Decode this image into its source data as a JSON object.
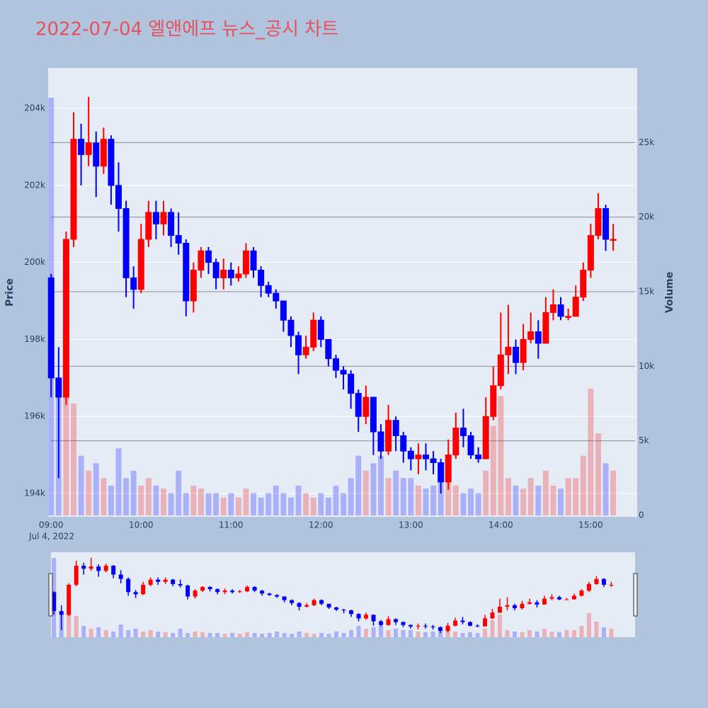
{
  "chart_data": {
    "type": "candlestick",
    "title": "2022-07-04 엘앤에프 뉴스_공시 차트",
    "y_label": "Price",
    "y2_label": "Volume",
    "x_date_label": "Jul 4, 2022",
    "increasing_color": "#ff0000",
    "decreasing_color": "#0000ff",
    "x": [
      "09:00",
      "09:05",
      "09:10",
      "09:15",
      "09:20",
      "09:25",
      "09:30",
      "09:35",
      "09:40",
      "09:45",
      "09:50",
      "09:55",
      "10:00",
      "10:05",
      "10:10",
      "10:15",
      "10:20",
      "10:25",
      "10:30",
      "10:35",
      "10:40",
      "10:45",
      "10:50",
      "10:55",
      "11:00",
      "11:05",
      "11:10",
      "11:15",
      "11:20",
      "11:25",
      "11:30",
      "11:35",
      "11:40",
      "11:45",
      "11:50",
      "11:55",
      "12:00",
      "12:05",
      "12:10",
      "12:15",
      "12:20",
      "12:25",
      "12:30",
      "12:35",
      "12:40",
      "12:45",
      "12:50",
      "12:55",
      "13:00",
      "13:05",
      "13:10",
      "13:15",
      "13:20",
      "13:25",
      "13:30",
      "13:35",
      "13:40",
      "13:45",
      "13:50",
      "13:55",
      "14:00",
      "14:05",
      "14:10",
      "14:15",
      "14:20",
      "14:25",
      "14:30",
      "14:35",
      "14:40",
      "14:45",
      "14:50",
      "14:55",
      "15:00",
      "15:05",
      "15:10",
      "15:15"
    ],
    "open": [
      199600,
      197000,
      196500,
      200600,
      203200,
      202800,
      203100,
      202500,
      203200,
      202000,
      201400,
      199600,
      199300,
      200600,
      201300,
      201000,
      201300,
      200700,
      200500,
      199000,
      199800,
      200300,
      200000,
      199600,
      199800,
      199600,
      199700,
      200300,
      199800,
      199400,
      199200,
      199000,
      198500,
      198100,
      197600,
      197800,
      198500,
      198000,
      197500,
      197200,
      197100,
      196600,
      196000,
      196500,
      195600,
      195100,
      195900,
      195500,
      195100,
      194900,
      195000,
      194900,
      194800,
      194300,
      195000,
      195700,
      195500,
      195000,
      194900,
      196000,
      196800,
      197600,
      197800,
      197400,
      198000,
      198200,
      197900,
      198700,
      198900,
      198600,
      198600,
      199100,
      199800,
      200700,
      201400,
      200600
    ],
    "high": [
      199700,
      197800,
      200800,
      203900,
      203600,
      204300,
      203400,
      203500,
      203300,
      202600,
      201600,
      199900,
      201000,
      201600,
      201600,
      201600,
      201400,
      201300,
      200600,
      200000,
      200400,
      200400,
      200100,
      200100,
      200000,
      199900,
      200500,
      200400,
      199900,
      199500,
      199300,
      199000,
      198600,
      198200,
      198100,
      198700,
      198600,
      198000,
      197600,
      197300,
      197200,
      196700,
      196800,
      196500,
      195800,
      196300,
      196000,
      195600,
      195200,
      195300,
      195300,
      195100,
      194900,
      195400,
      196100,
      196200,
      195600,
      195200,
      196500,
      197300,
      198700,
      198900,
      198000,
      198400,
      198700,
      198500,
      199100,
      199300,
      199100,
      198800,
      199400,
      200000,
      201000,
      201800,
      201500,
      201000
    ],
    "low": [
      196500,
      194400,
      196300,
      200400,
      202000,
      202500,
      201700,
      202300,
      201500,
      200800,
      199100,
      198800,
      199200,
      200400,
      200600,
      200700,
      200400,
      200200,
      198600,
      198700,
      199600,
      199700,
      199300,
      199300,
      199400,
      199500,
      199600,
      199600,
      199100,
      199100,
      198800,
      198200,
      197800,
      197100,
      197500,
      197700,
      197800,
      197300,
      197000,
      196700,
      196200,
      195600,
      195800,
      195000,
      194900,
      195000,
      195100,
      194800,
      194600,
      194500,
      194600,
      194500,
      194000,
      194100,
      194900,
      195200,
      194900,
      194800,
      194900,
      195900,
      196700,
      197100,
      197100,
      197200,
      197900,
      197500,
      197900,
      198500,
      198500,
      198500,
      198600,
      199000,
      199600,
      200600,
      200300,
      200300
    ],
    "close": [
      197000,
      196500,
      200600,
      203200,
      202800,
      203100,
      202500,
      203200,
      202000,
      201400,
      199600,
      199300,
      200600,
      201300,
      201000,
      201300,
      200700,
      200500,
      199000,
      199800,
      200300,
      200000,
      199600,
      199800,
      199600,
      199700,
      200300,
      199800,
      199400,
      199200,
      199000,
      198500,
      198100,
      197600,
      197800,
      198500,
      198000,
      197500,
      197200,
      197100,
      196600,
      196000,
      196500,
      195600,
      195100,
      195900,
      195500,
      195100,
      194900,
      195000,
      194900,
      194800,
      194300,
      195000,
      195700,
      195500,
      195000,
      194900,
      196000,
      196800,
      197600,
      197800,
      197400,
      198000,
      198200,
      197900,
      198700,
      198900,
      198600,
      198600,
      199100,
      199800,
      200700,
      201400,
      200600,
      200600
    ],
    "volume": [
      28000,
      9000,
      14500,
      7500,
      4000,
      3000,
      3500,
      2500,
      2000,
      4500,
      2500,
      3000,
      2000,
      2500,
      2000,
      1800,
      1500,
      3000,
      1500,
      2000,
      1800,
      1500,
      1500,
      1200,
      1500,
      1200,
      1800,
      1500,
      1200,
      1500,
      2000,
      1500,
      1200,
      2000,
      1500,
      1200,
      1500,
      1200,
      2000,
      1500,
      2500,
      4000,
      3000,
      3500,
      4000,
      2500,
      3000,
      2500,
      2500,
      2000,
      1800,
      2000,
      3000,
      2500,
      2000,
      1500,
      1800,
      1500,
      3000,
      6000,
      8000,
      2500,
      2000,
      1800,
      2500,
      2000,
      3000,
      2000,
      1800,
      2500,
      2500,
      4000,
      8500,
      5500,
      3500,
      3000
    ],
    "xlim": [
      "08:58",
      "15:31"
    ],
    "xticks": [
      "09:00",
      "10:00",
      "11:00",
      "12:00",
      "13:00",
      "14:00",
      "15:00"
    ],
    "ylim": [
      193430,
      205050
    ],
    "yticks": [
      {
        "value": 194000,
        "label": "194k"
      },
      {
        "value": 196000,
        "label": "196k"
      },
      {
        "value": 198000,
        "label": "198k"
      },
      {
        "value": 200000,
        "label": "200k"
      },
      {
        "value": 202000,
        "label": "202k"
      },
      {
        "value": 204000,
        "label": "204k"
      }
    ],
    "y2lim": [
      0,
      30000
    ],
    "y2ticks": [
      0,
      {
        "value": 5000,
        "label": "5k"
      },
      {
        "value": 10000,
        "label": "10k"
      },
      {
        "value": 15000,
        "label": "15k"
      },
      {
        "value": 20000,
        "label": "20k"
      },
      {
        "value": 25000,
        "label": "25k"
      }
    ],
    "rangeslider": true
  }
}
